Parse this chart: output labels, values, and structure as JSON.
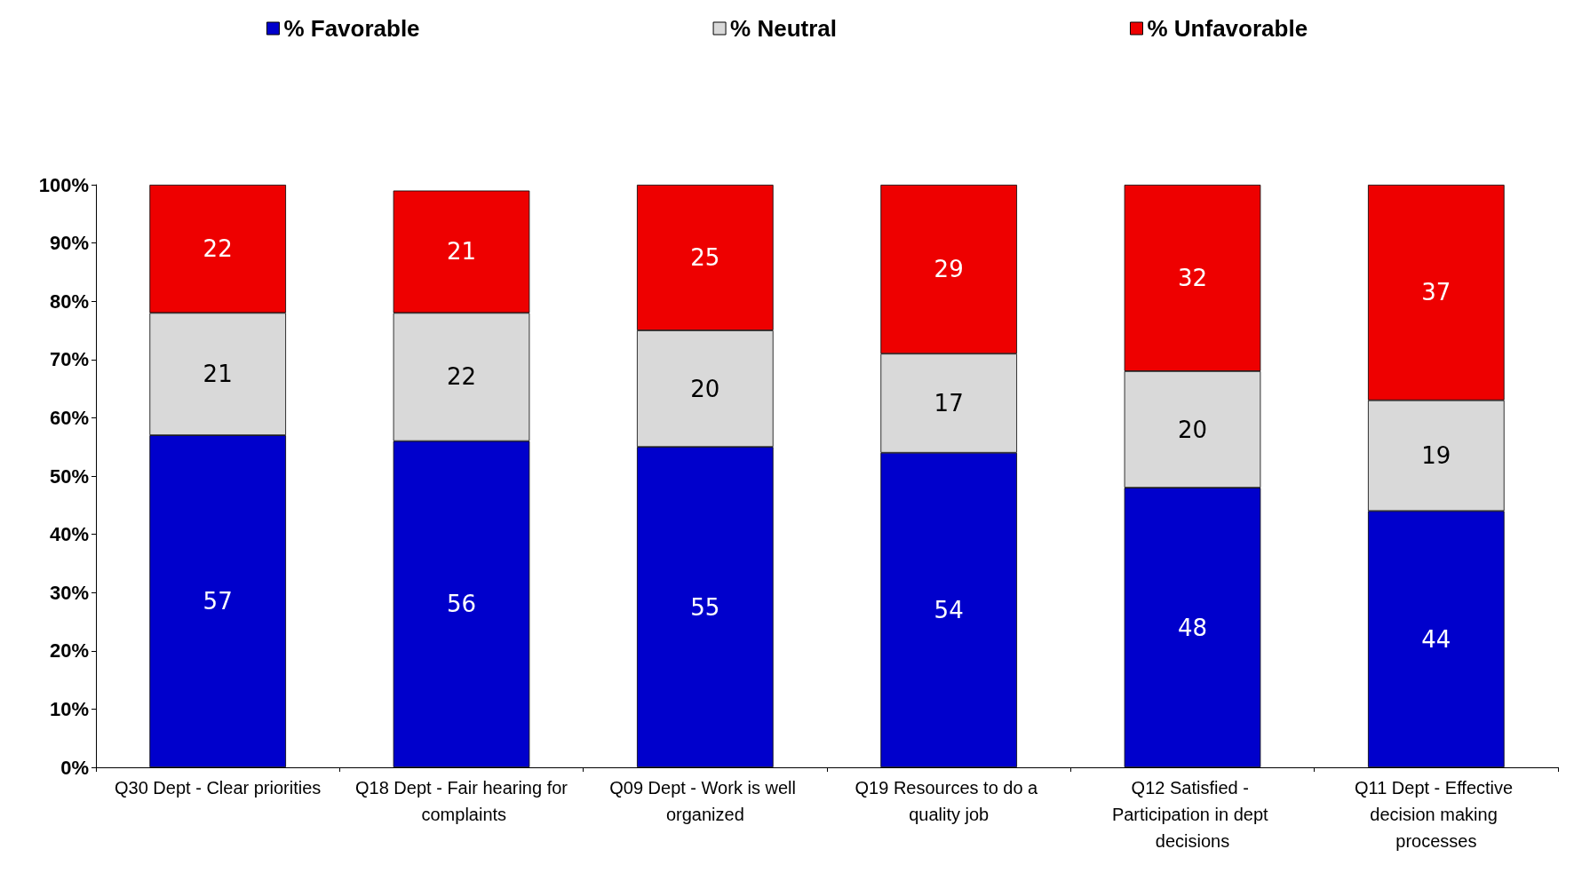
{
  "chart_data": {
    "type": "bar",
    "stacked": true,
    "data_labels": true,
    "legend": "top",
    "grid": false,
    "categories": [
      "Q30 Dept - Clear priorities",
      "Q18 Dept - Fair hearing for complaints",
      "Q09 Dept - Work is well organized",
      "Q19 Resources to do a quality job",
      "Q12 Satisfied - Participation in dept decisions",
      "Q11 Dept - Effective decision making processes"
    ],
    "series": [
      {
        "name": "% Favorable",
        "color": "#0000cc",
        "values": [
          57,
          56,
          55,
          54,
          48,
          44
        ]
      },
      {
        "name": "% Neutral",
        "color": "#d9d9d9",
        "values": [
          21,
          22,
          20,
          17,
          20,
          19
        ]
      },
      {
        "name": "% Unfavorable",
        "color": "#ee0000",
        "values": [
          22,
          21,
          25,
          29,
          32,
          37
        ]
      }
    ],
    "ylim": [
      0,
      100
    ],
    "yticks": [
      {
        "value": 0,
        "label": "0%"
      },
      {
        "value": 10,
        "label": "10%"
      },
      {
        "value": 20,
        "label": "20%"
      },
      {
        "value": 30,
        "label": "30%"
      },
      {
        "value": 40,
        "label": "40%"
      },
      {
        "value": 50,
        "label": "50%"
      },
      {
        "value": 60,
        "label": "60%"
      },
      {
        "value": 70,
        "label": "70%"
      },
      {
        "value": 80,
        "label": "80%"
      },
      {
        "value": 90,
        "label": "90%"
      },
      {
        "value": 100,
        "label": "100%"
      }
    ]
  }
}
